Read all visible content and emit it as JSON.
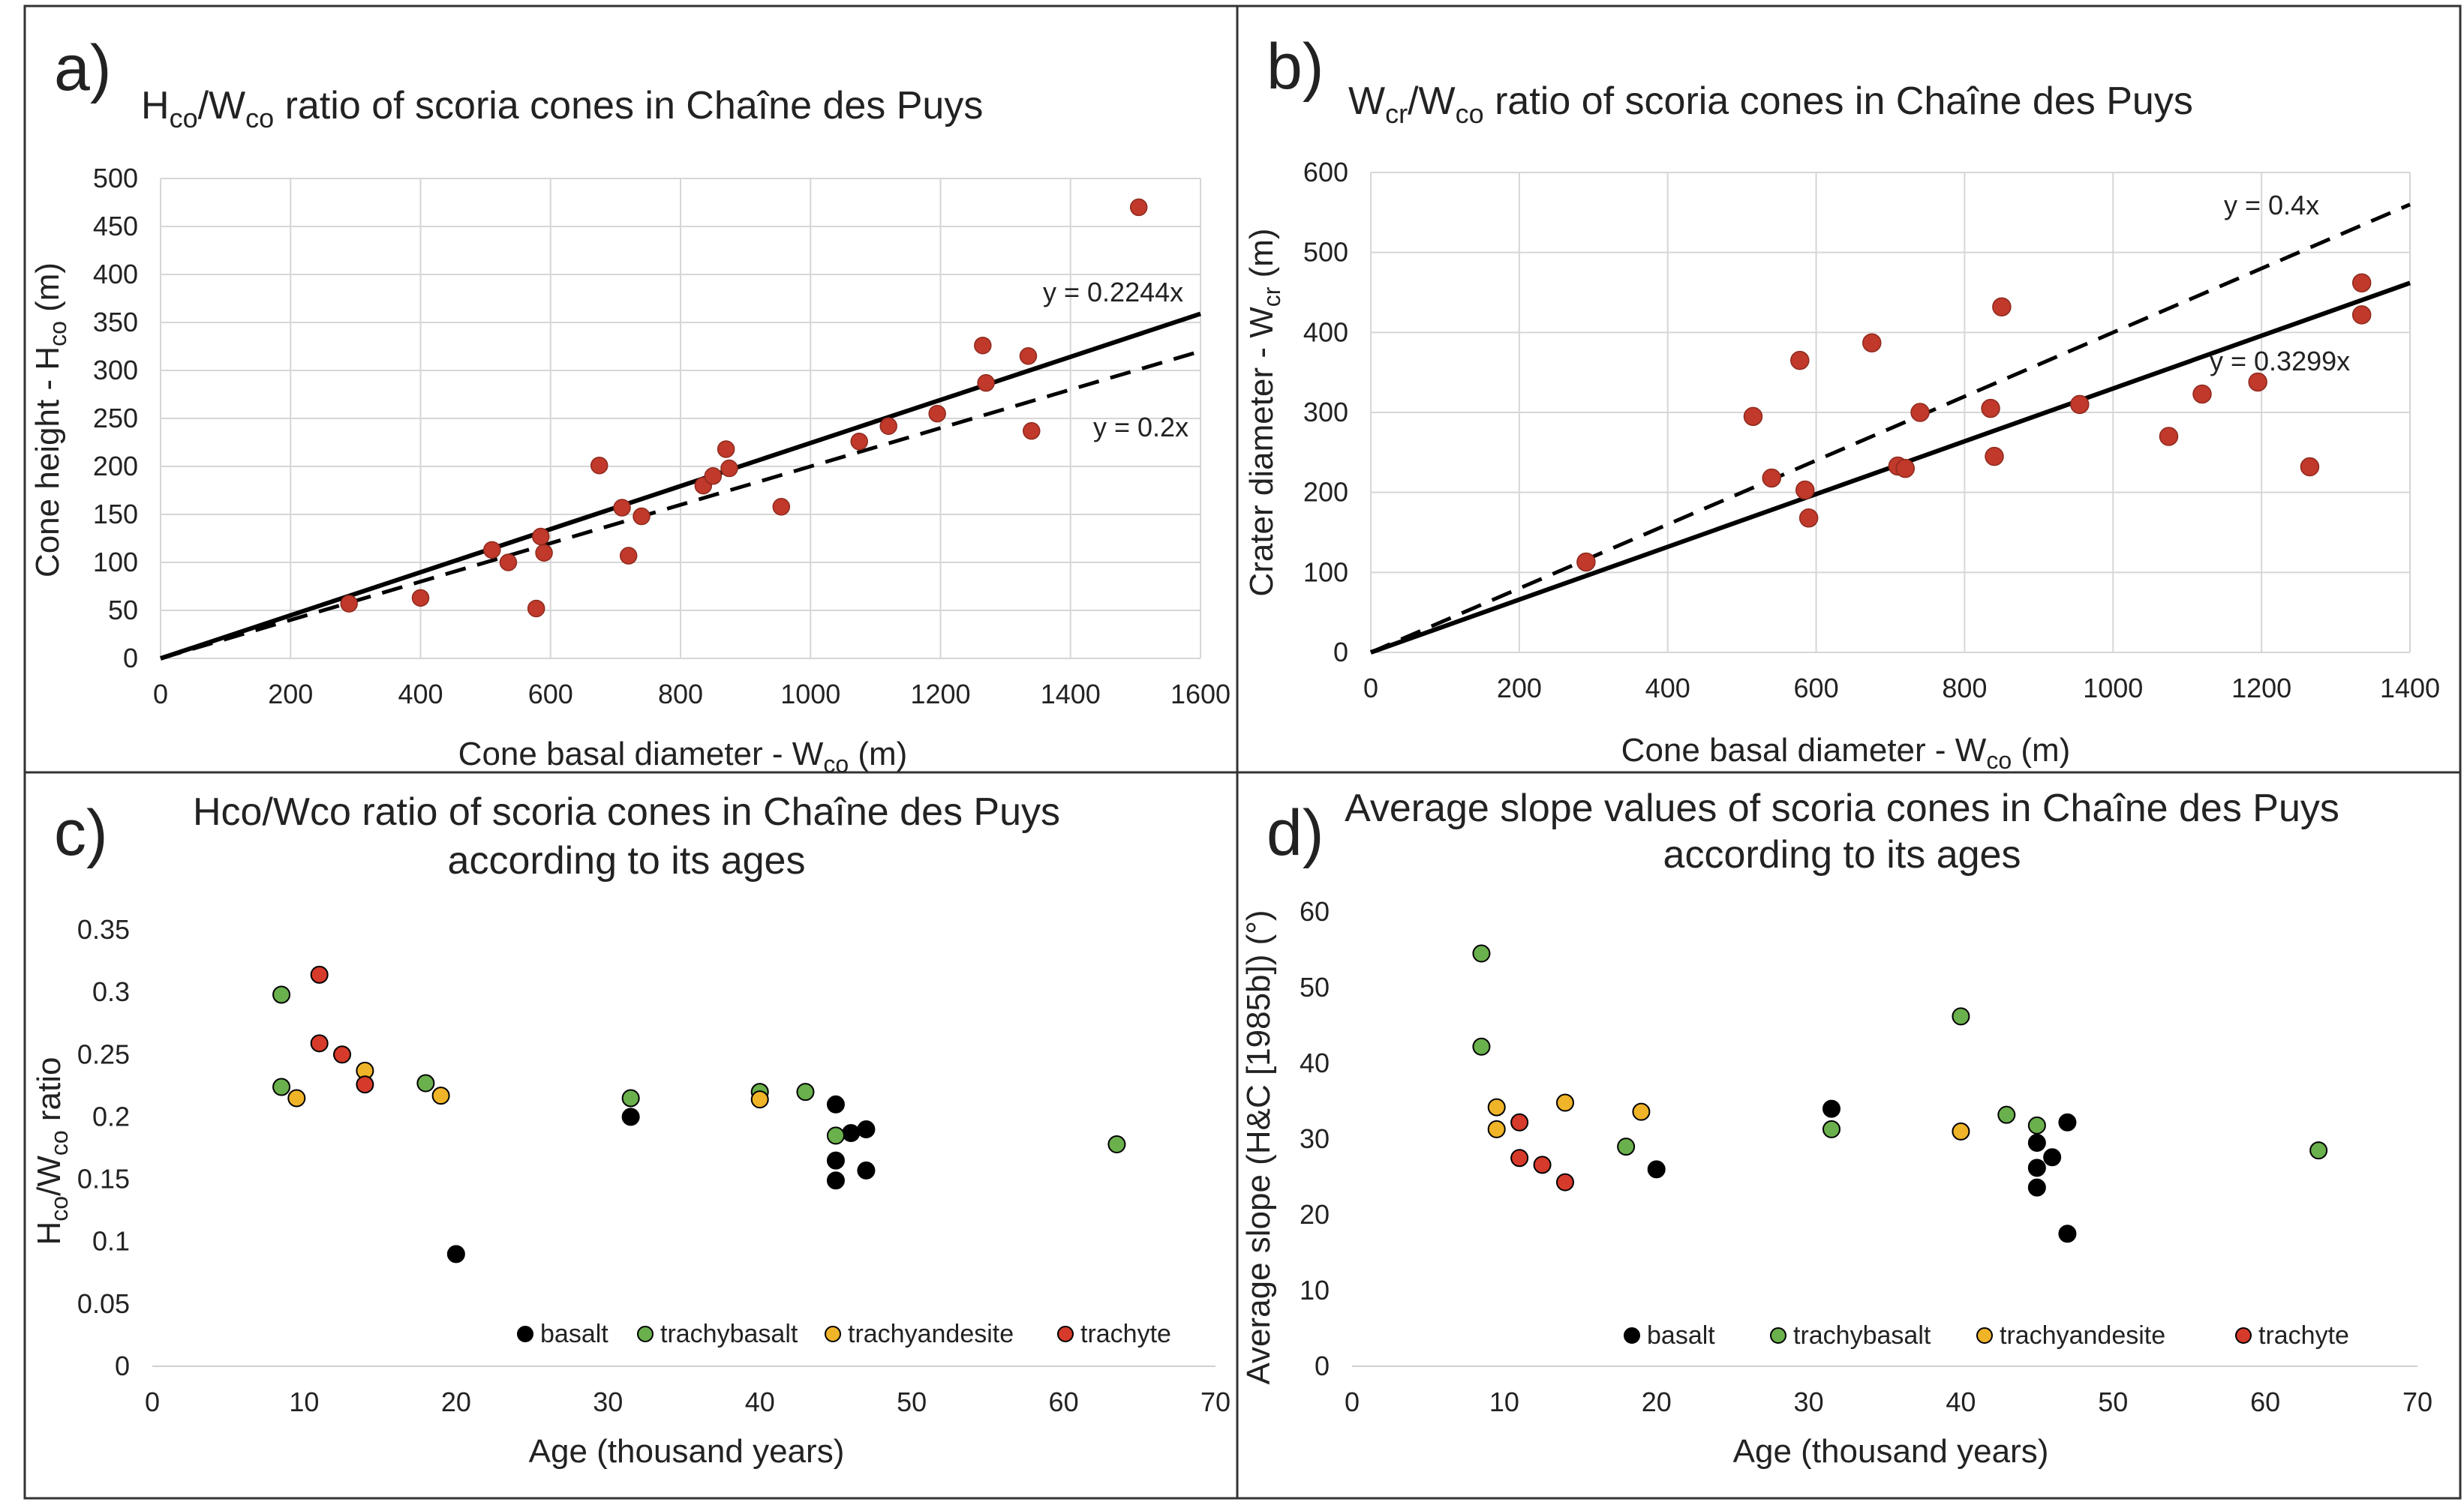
{
  "figure": {
    "labels": [
      "a)",
      "b)",
      "c)",
      "d)"
    ]
  },
  "chart_data": [
    {
      "id": "a",
      "type": "scatter",
      "title": "Hco/Wco ratio of scoria cones in Chaîne des Puys",
      "title_main": "H",
      "title_sub1": "co",
      "title_mid": "/W",
      "title_sub2": "co",
      "title_rest": " ratio of scoria cones in Chaîne des Puys",
      "xlabel": "Cone basal diameter - Wco (m)",
      "xlabel_main": "Cone basal diameter - W",
      "xlabel_sub": "co",
      "xlabel_rest": " (m)",
      "ylabel": "Cone height - Hco (m)",
      "ylabel_main": "Cone height - H",
      "ylabel_sub": "co",
      "ylabel_rest": " (m)",
      "xlim": [
        0,
        1600
      ],
      "ylim": [
        0,
        500
      ],
      "xticks": [
        0,
        200,
        400,
        600,
        800,
        1000,
        1200,
        1400,
        1600
      ],
      "yticks": [
        0,
        50,
        100,
        150,
        200,
        250,
        300,
        350,
        400,
        450,
        500
      ],
      "grid": true,
      "point_color": "#c0392b",
      "lines": [
        {
          "label": "y = 0.2244x",
          "slope": 0.2244,
          "style": "solid"
        },
        {
          "label": "y = 0.2x",
          "slope": 0.2,
          "style": "dashed"
        }
      ],
      "points": [
        [
          290,
          57
        ],
        [
          400,
          63
        ],
        [
          510,
          113
        ],
        [
          535,
          100
        ],
        [
          578,
          52
        ],
        [
          585,
          127
        ],
        [
          590,
          110
        ],
        [
          675,
          201
        ],
        [
          710,
          157
        ],
        [
          720,
          107
        ],
        [
          740,
          148
        ],
        [
          835,
          180
        ],
        [
          850,
          190
        ],
        [
          870,
          218
        ],
        [
          875,
          198
        ],
        [
          955,
          158
        ],
        [
          1075,
          226
        ],
        [
          1120,
          242
        ],
        [
          1195,
          255
        ],
        [
          1265,
          326
        ],
        [
          1270,
          287
        ],
        [
          1335,
          315
        ],
        [
          1340,
          237
        ],
        [
          1505,
          470
        ]
      ]
    },
    {
      "id": "b",
      "type": "scatter",
      "title": "Wcr/Wco ratio of scoria cones in Chaîne des Puys",
      "title_main": "W",
      "title_sub1": "cr",
      "title_mid": "/W",
      "title_sub2": "co",
      "title_rest": " ratio of scoria cones in Chaîne des Puys",
      "xlabel": "Cone basal diameter - Wco (m)",
      "xlabel_main": "Cone basal diameter - W",
      "xlabel_sub": "co",
      "xlabel_rest": " (m)",
      "ylabel": "Crater diameter - Wcr (m)",
      "ylabel_main": "Crater diameter - W",
      "ylabel_sub": "cr",
      "ylabel_rest": " (m)",
      "xlim": [
        0,
        1400
      ],
      "ylim": [
        0,
        600
      ],
      "xticks": [
        0,
        200,
        400,
        600,
        800,
        1000,
        1200,
        1400
      ],
      "yticks": [
        0,
        100,
        200,
        300,
        400,
        500,
        600
      ],
      "grid": true,
      "point_color": "#c0392b",
      "lines": [
        {
          "label": "y = 0.4x",
          "slope": 0.4,
          "style": "dashed"
        },
        {
          "label": "y = 0.3299x",
          "slope": 0.3299,
          "style": "solid"
        }
      ],
      "points": [
        [
          290,
          113
        ],
        [
          515,
          295
        ],
        [
          540,
          218
        ],
        [
          578,
          365
        ],
        [
          585,
          203
        ],
        [
          590,
          168
        ],
        [
          675,
          387
        ],
        [
          710,
          233
        ],
        [
          720,
          230
        ],
        [
          740,
          300
        ],
        [
          835,
          305
        ],
        [
          840,
          245
        ],
        [
          850,
          432
        ],
        [
          955,
          310
        ],
        [
          1075,
          270
        ],
        [
          1120,
          323
        ],
        [
          1195,
          338
        ],
        [
          1265,
          232
        ],
        [
          1335,
          462
        ],
        [
          1335,
          422
        ]
      ]
    },
    {
      "id": "c",
      "type": "scatter",
      "title": "Hco/Wco ratio of scoria cones in Chaîne des Puys according to its ages",
      "title_line1": "Hco/Wco ratio of scoria cones in Chaîne des Puys",
      "title_line2": "according to its ages",
      "xlabel": "Age (thousand years)",
      "ylabel": "Hco/Wco ratio",
      "ylabel_main1": "H",
      "ylabel_sub1": "co",
      "ylabel_main2": "/W",
      "ylabel_sub2": "co",
      "ylabel_rest": " ratio",
      "xlim": [
        0,
        70
      ],
      "ylim": [
        0,
        0.35
      ],
      "xticks": [
        0,
        10,
        20,
        30,
        40,
        50,
        60,
        70
      ],
      "yticks": [
        "0",
        "0.05",
        "0.1",
        "0.15",
        "0.2",
        "0.25",
        "0.3",
        "0.35"
      ],
      "grid": false,
      "series": [
        {
          "name": "basalt",
          "color": "#000000",
          "points": [
            [
              20,
              0.09
            ],
            [
              31.5,
              0.2
            ],
            [
              45,
              0.21
            ],
            [
              45,
              0.165
            ],
            [
              45,
              0.149
            ],
            [
              46,
              0.187
            ],
            [
              47,
              0.19
            ],
            [
              47,
              0.157
            ]
          ]
        },
        {
          "name": "trachybasalt",
          "color": "#6ab04c",
          "points": [
            [
              8.5,
              0.298
            ],
            [
              8.5,
              0.224
            ],
            [
              18,
              0.227
            ],
            [
              31.5,
              0.215
            ],
            [
              40,
              0.22
            ],
            [
              43,
              0.22
            ],
            [
              45,
              0.185
            ],
            [
              63.5,
              0.178
            ]
          ]
        },
        {
          "name": "trachyandesite",
          "color": "#f0b429",
          "points": [
            [
              9.5,
              0.215
            ],
            [
              14,
              0.237
            ],
            [
              19,
              0.217
            ],
            [
              40,
              0.214
            ]
          ]
        },
        {
          "name": "trachyte",
          "color": "#d63a2a",
          "points": [
            [
              11,
              0.314
            ],
            [
              11,
              0.259
            ],
            [
              12.5,
              0.25
            ],
            [
              14,
              0.226
            ]
          ]
        }
      ],
      "legend_position": "bottom-right"
    },
    {
      "id": "d",
      "type": "scatter",
      "title": "Average slope values of scoria cones in Chaîne des Puys according to its ages",
      "title_line1": "Average slope values of scoria cones in Chaîne des Puys",
      "title_line2": "according to its ages",
      "xlabel": "Age (thousand years)",
      "ylabel": "Average slope (H&C [1985b]) (°)",
      "xlim": [
        0,
        70
      ],
      "ylim": [
        0,
        60
      ],
      "xticks": [
        0,
        10,
        20,
        30,
        40,
        50,
        60,
        70
      ],
      "yticks": [
        0,
        10,
        20,
        30,
        40,
        50,
        60
      ],
      "grid": false,
      "series": [
        {
          "name": "basalt",
          "color": "#000000",
          "points": [
            [
              20,
              26
            ],
            [
              31.5,
              34
            ],
            [
              45,
              29.5
            ],
            [
              45,
              26.2
            ],
            [
              45,
              23.6
            ],
            [
              46,
              27.6
            ],
            [
              47,
              32.2
            ],
            [
              47,
              17.5
            ]
          ]
        },
        {
          "name": "trachybasalt",
          "color": "#6ab04c",
          "points": [
            [
              8.5,
              54.5
            ],
            [
              8.5,
              42.2
            ],
            [
              18,
              29
            ],
            [
              31.5,
              31.3
            ],
            [
              40,
              46.2
            ],
            [
              43,
              33.2
            ],
            [
              45,
              31.8
            ],
            [
              63.5,
              28.5
            ]
          ]
        },
        {
          "name": "trachyandesite",
          "color": "#f0b429",
          "points": [
            [
              9.5,
              31.3
            ],
            [
              9.5,
              34.2
            ],
            [
              14,
              34.8
            ],
            [
              19,
              33.6
            ],
            [
              40,
              31
            ]
          ]
        },
        {
          "name": "trachyte",
          "color": "#d63a2a",
          "points": [
            [
              11,
              32.2
            ],
            [
              11,
              27.5
            ],
            [
              12.5,
              26.6
            ],
            [
              14,
              24.3
            ]
          ]
        }
      ],
      "legend_position": "bottom-right"
    }
  ]
}
